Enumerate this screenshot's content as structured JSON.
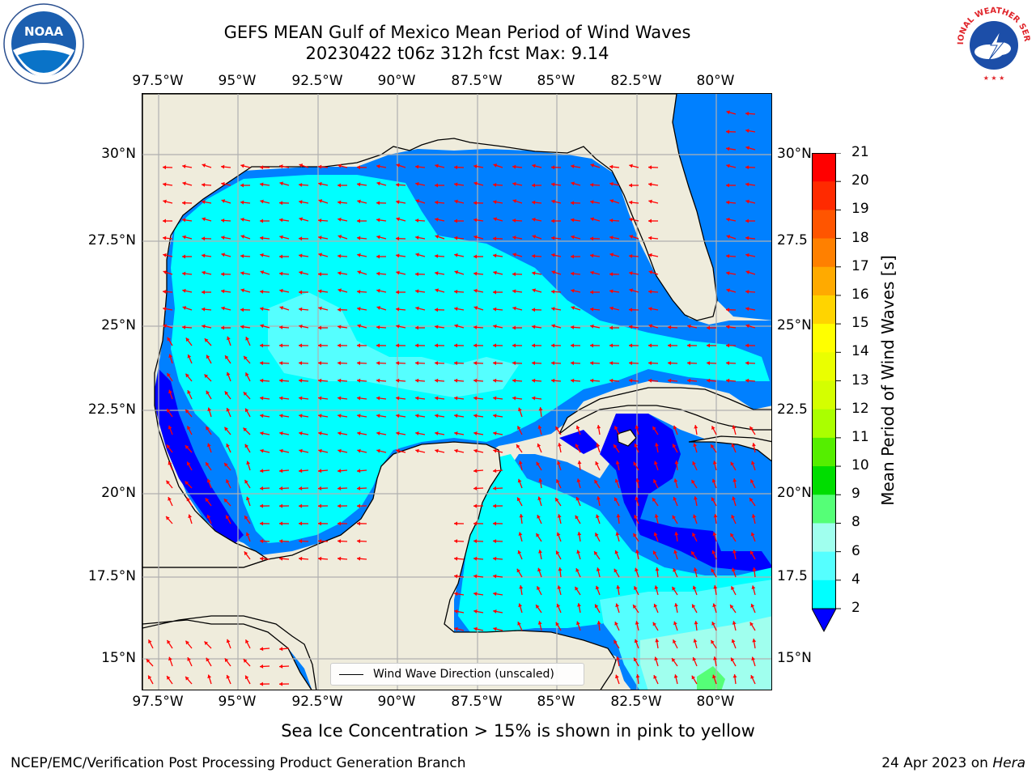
{
  "title": {
    "line1": "GEFS MEAN Gulf of Mexico Mean Period of Wind Waves",
    "line2": "20230422 t06z 312h fcst   Max: 9.14"
  },
  "logos": {
    "left": "noaa-logo",
    "left_text": "NOAA",
    "right": "nws-logo",
    "right_text": "NATIONAL WEATHER SERVICE"
  },
  "map": {
    "lon_labels": [
      "97.5°W",
      "95°W",
      "92.5°W",
      "90°W",
      "87.5°W",
      "85°W",
      "82.5°W",
      "80°W"
    ],
    "lat_labels": [
      "30°N",
      "27.5°N",
      "25°N",
      "22.5°N",
      "20°N",
      "17.5°N",
      "15°N"
    ],
    "lat_labels_right": [
      "30°N",
      "27.5",
      "25°N",
      "22.5",
      "20°N",
      "17.5",
      "15°N"
    ],
    "legend_label": "Wind Wave Direction (unscaled)",
    "land_color": "#efecdc",
    "arrow_color": "#ff0000",
    "grid_color": "#b0b0b0"
  },
  "colorbar": {
    "title": "Mean Period of Wind Waves [s]",
    "labels": [
      "21",
      "20",
      "19",
      "18",
      "17",
      "16",
      "15",
      "14",
      "13",
      "12",
      "11",
      "10",
      "9",
      "8",
      "6",
      "4",
      "2"
    ],
    "colors": [
      "#ff0000",
      "#ff2a00",
      "#ff5500",
      "#ff8000",
      "#ffaa00",
      "#ffd400",
      "#ffff00",
      "#eaff00",
      "#d4ff00",
      "#aaff00",
      "#55ee00",
      "#00dd00",
      "#55ff77",
      "#a0ffee",
      "#55ffff",
      "#00ffff",
      "#0080ff",
      "#0000ff"
    ]
  },
  "footnote": "Sea Ice Concentration > 15% is shown in pink to yellow",
  "credit_left": "NCEP/EMC/Verification Post Processing Product Generation Branch",
  "credit_right_prefix": "24 Apr 2023 on ",
  "credit_right_host": "Hera"
}
